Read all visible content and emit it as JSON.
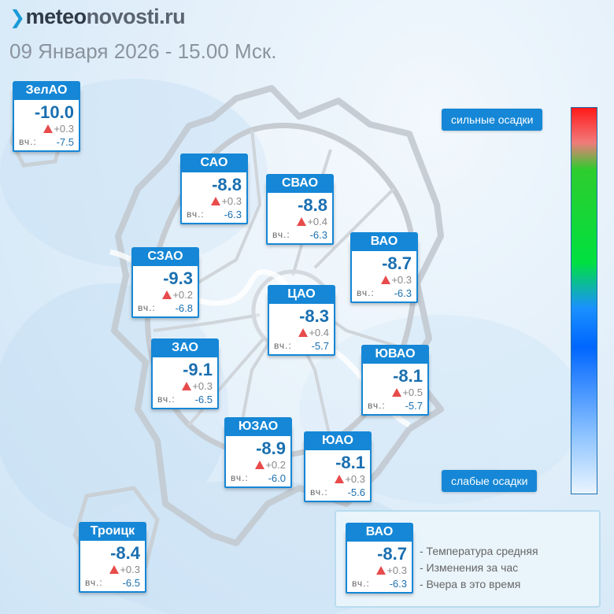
{
  "header": {
    "logo_part1": "meteo",
    "logo_part2": "novosti.ru",
    "datetime": "09 Января 2026 - 15.00 Мск."
  },
  "labels": {
    "yesterday_prefix": "вч.:"
  },
  "districts": [
    {
      "name": "ЗелАО",
      "temp": "-10.0",
      "change": "+0.3",
      "yesterday": "-7.5"
    },
    {
      "name": "САО",
      "temp": "-8.8",
      "change": "+0.3",
      "yesterday": "-6.3"
    },
    {
      "name": "СВАО",
      "temp": "-8.8",
      "change": "+0.4",
      "yesterday": "-6.3"
    },
    {
      "name": "ВАО",
      "temp": "-8.7",
      "change": "+0.3",
      "yesterday": "-6.3"
    },
    {
      "name": "СЗАО",
      "temp": "-9.3",
      "change": "+0.2",
      "yesterday": "-6.8"
    },
    {
      "name": "ЦАО",
      "temp": "-8.3",
      "change": "+0.4",
      "yesterday": "-5.7"
    },
    {
      "name": "ЗАО",
      "temp": "-9.1",
      "change": "+0.3",
      "yesterday": "-6.5"
    },
    {
      "name": "ЮВАО",
      "temp": "-8.1",
      "change": "+0.5",
      "yesterday": "-5.7"
    },
    {
      "name": "ЮЗАО",
      "temp": "-8.9",
      "change": "+0.2",
      "yesterday": "-6.0"
    },
    {
      "name": "ЮАО",
      "temp": "-8.1",
      "change": "+0.3",
      "yesterday": "-5.6"
    },
    {
      "name": "Троицк",
      "temp": "-8.4",
      "change": "+0.3",
      "yesterday": "-6.5"
    }
  ],
  "precipitation_scale": {
    "high_label": "сильные осадки",
    "low_label": "слабые осадки",
    "colors": [
      "#ff1a1a",
      "#2ecc2e",
      "#0066ff",
      "#eaf4ff"
    ]
  },
  "legend": {
    "sample": {
      "name": "ВАО",
      "temp": "-8.7",
      "change": "+0.3",
      "yesterday": "-6.3"
    },
    "items": [
      "- Температура средняя",
      "- Изменения за час",
      "- Вчера в это время"
    ]
  },
  "colors": {
    "accent": "#1587d6",
    "temperature_text": "#1a6fb0",
    "increase_marker": "#e84b4b"
  }
}
